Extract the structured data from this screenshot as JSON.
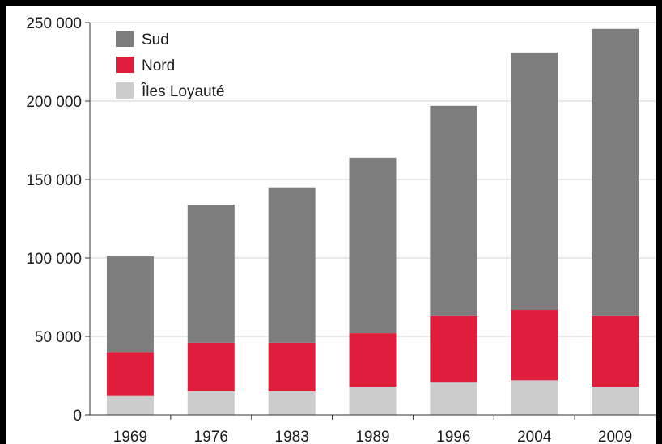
{
  "chart_data": {
    "type": "bar",
    "stacked": true,
    "categories": [
      "1969",
      "1976",
      "1983",
      "1989",
      "1996",
      "2004",
      "2009"
    ],
    "series": [
      {
        "name": "Îles Loyauté",
        "color": "#cccccc",
        "values": [
          12000,
          15000,
          15000,
          18000,
          21000,
          22000,
          18000
        ]
      },
      {
        "name": "Nord",
        "color": "#e01e3c",
        "values": [
          28000,
          31000,
          31000,
          34000,
          42000,
          45000,
          45000
        ]
      },
      {
        "name": "Sud",
        "color": "#7d7d7d",
        "values": [
          61000,
          88000,
          99000,
          112000,
          134000,
          164000,
          183000
        ]
      }
    ],
    "legend_order": [
      "Sud",
      "Nord",
      "Îles Loyauté"
    ],
    "legend_position": "top-left",
    "ylim": [
      0,
      250000
    ],
    "yticks": [
      0,
      50000,
      100000,
      150000,
      200000,
      250000
    ],
    "ytick_labels": [
      "0",
      "50 000",
      "100 000",
      "150 000",
      "200 000",
      "250 000"
    ],
    "grid": true,
    "title": "",
    "xlabel": "",
    "ylabel": ""
  }
}
